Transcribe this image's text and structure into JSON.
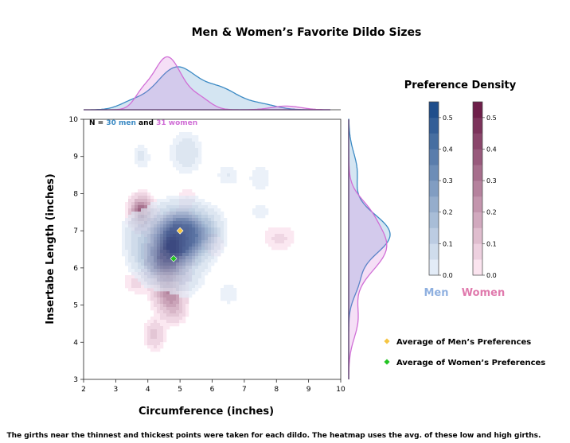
{
  "chart_data": {
    "type": "heatmap",
    "title": "Men & Women’s Favorite Dildo Sizes",
    "xlabel": "Circumference (inches)",
    "ylabel": "Insertabe Length (inches)",
    "xlim": [
      2,
      10
    ],
    "ylim": [
      3,
      10
    ],
    "x_ticks": [
      "2",
      "3",
      "4",
      "5",
      "6",
      "7",
      "8",
      "9",
      "10"
    ],
    "y_ticks": [
      "3",
      "4",
      "5",
      "6",
      "7",
      "8",
      "9",
      "10"
    ],
    "n_label": {
      "prefix": "N = ",
      "men": "30 men",
      "and": " and ",
      "women": "31 women"
    },
    "colorbar": {
      "title": "Preference Density",
      "ticks": [
        "0.0",
        "0.1",
        "0.2",
        "0.3",
        "0.4",
        "0.5"
      ],
      "tick_values": [
        0.0,
        0.1,
        0.2,
        0.3,
        0.4,
        0.5
      ],
      "max": 0.55,
      "men_label": "Men",
      "women_label": "Women"
    },
    "legend": [
      {
        "label": "Average of Men’s Preferences",
        "color": "#f5c542",
        "marker": "diamond"
      },
      {
        "label": "Average of Women’s Preferences",
        "color": "#22c422",
        "marker": "diamond"
      }
    ],
    "men_average": {
      "x": 5.0,
      "y": 7.0
    },
    "women_average": {
      "x": 4.8,
      "y": 6.25
    },
    "men_kde_blobs": [
      {
        "x": 5.0,
        "y": 7.0,
        "sx": 0.55,
        "sy": 0.4,
        "w": 0.42
      },
      {
        "x": 4.6,
        "y": 6.4,
        "sx": 0.5,
        "sy": 0.45,
        "w": 0.3
      },
      {
        "x": 5.3,
        "y": 6.7,
        "sx": 0.4,
        "sy": 0.45,
        "w": 0.22
      },
      {
        "x": 5.9,
        "y": 7.0,
        "sx": 0.3,
        "sy": 0.3,
        "w": 0.1
      },
      {
        "x": 3.8,
        "y": 6.4,
        "sx": 0.3,
        "sy": 0.3,
        "w": 0.09
      },
      {
        "x": 4.2,
        "y": 6.0,
        "sx": 0.3,
        "sy": 0.25,
        "w": 0.08
      },
      {
        "x": 3.6,
        "y": 7.0,
        "sx": 0.28,
        "sy": 0.3,
        "w": 0.07
      },
      {
        "x": 5.2,
        "y": 9.1,
        "sx": 0.32,
        "sy": 0.35,
        "w": 0.09
      },
      {
        "x": 3.8,
        "y": 9.0,
        "sx": 0.18,
        "sy": 0.22,
        "w": 0.06
      },
      {
        "x": 6.5,
        "y": 8.5,
        "sx": 0.25,
        "sy": 0.2,
        "w": 0.05
      },
      {
        "x": 7.5,
        "y": 8.4,
        "sx": 0.25,
        "sy": 0.25,
        "w": 0.05
      },
      {
        "x": 7.5,
        "y": 7.5,
        "sx": 0.22,
        "sy": 0.2,
        "w": 0.04
      },
      {
        "x": 6.5,
        "y": 5.3,
        "sx": 0.22,
        "sy": 0.2,
        "w": 0.05
      },
      {
        "x": 5.2,
        "y": 5.6,
        "sx": 0.3,
        "sy": 0.25,
        "w": 0.06
      }
    ],
    "women_kde_blobs": [
      {
        "x": 4.7,
        "y": 6.4,
        "sx": 0.3,
        "sy": 0.35,
        "w": 0.5
      },
      {
        "x": 5.0,
        "y": 6.9,
        "sx": 0.35,
        "sy": 0.3,
        "w": 0.25
      },
      {
        "x": 3.8,
        "y": 7.5,
        "sx": 0.22,
        "sy": 0.25,
        "w": 0.45
      },
      {
        "x": 4.6,
        "y": 5.6,
        "sx": 0.3,
        "sy": 0.4,
        "w": 0.3
      },
      {
        "x": 4.8,
        "y": 5.0,
        "sx": 0.25,
        "sy": 0.3,
        "w": 0.15
      },
      {
        "x": 4.2,
        "y": 4.2,
        "sx": 0.2,
        "sy": 0.25,
        "w": 0.12
      },
      {
        "x": 3.6,
        "y": 5.6,
        "sx": 0.25,
        "sy": 0.2,
        "w": 0.06
      },
      {
        "x": 5.2,
        "y": 7.9,
        "sx": 0.2,
        "sy": 0.2,
        "w": 0.05
      },
      {
        "x": 6.1,
        "y": 6.6,
        "sx": 0.2,
        "sy": 0.25,
        "w": 0.05
      },
      {
        "x": 8.1,
        "y": 6.8,
        "sx": 0.35,
        "sy": 0.25,
        "w": 0.06
      },
      {
        "x": 4.4,
        "y": 6.2,
        "sx": 0.25,
        "sy": 0.3,
        "w": 0.15
      }
    ],
    "men_marginal_x": [
      {
        "x": 4.9,
        "s": 0.65,
        "w": 0.8
      },
      {
        "x": 6.3,
        "s": 0.55,
        "w": 0.35
      },
      {
        "x": 7.5,
        "s": 0.5,
        "w": 0.1
      },
      {
        "x": 3.5,
        "s": 0.4,
        "w": 0.12
      }
    ],
    "women_marginal_x": [
      {
        "x": 4.6,
        "s": 0.45,
        "w": 1.0
      },
      {
        "x": 3.8,
        "s": 0.25,
        "w": 0.2
      },
      {
        "x": 5.6,
        "s": 0.35,
        "w": 0.2
      },
      {
        "x": 8.3,
        "s": 0.45,
        "w": 0.07
      }
    ],
    "men_marginal_y": [
      {
        "y": 6.9,
        "s": 0.55,
        "w": 1.0
      },
      {
        "y": 8.6,
        "s": 0.5,
        "w": 0.2
      },
      {
        "y": 5.6,
        "s": 0.4,
        "w": 0.2
      }
    ],
    "women_marginal_y": [
      {
        "y": 6.6,
        "s": 0.7,
        "w": 0.95
      },
      {
        "y": 7.6,
        "s": 0.35,
        "w": 0.18
      },
      {
        "y": 4.6,
        "s": 0.5,
        "w": 0.22
      }
    ],
    "colors": {
      "men_light": "#e3ecf7",
      "men_dark": "#1f4e8c",
      "women_light": "#fbe4ef",
      "women_dark": "#6e1f4a",
      "men_line": "#3b8ac4",
      "women_line": "#d06ed6",
      "men_label": "#8fb0e0",
      "women_label": "#e07aad"
    },
    "footnote": "The girths near the thinnest and thickest points were taken for each dildo. The heatmap uses the avg. of these low and high girths."
  }
}
